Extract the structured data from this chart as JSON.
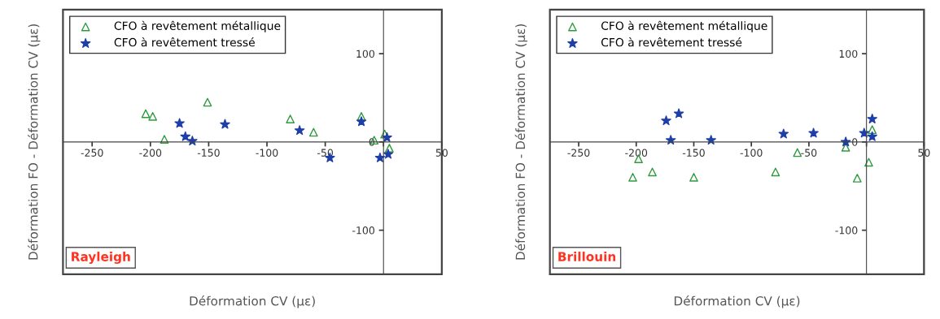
{
  "chart_data": [
    {
      "type": "scatter",
      "xlabel": "Déformation CV (µε)",
      "ylabel": "Déformation FO - Déformation CV (µε)",
      "annotations": [
        "Rayleigh"
      ],
      "xlim": [
        -275,
        50
      ],
      "ylim": [
        -150,
        150
      ],
      "xticks": [
        -250,
        -200,
        -150,
        -100,
        -50,
        {
          "value": 0,
          "label": null
        },
        50
      ],
      "yticks": [
        -100,
        0,
        100
      ],
      "legend": "top left",
      "grid": false,
      "series": [
        {
          "name": "CFO à revêtement métallique",
          "color": "#2e9a3e",
          "marker": "triangle",
          "x": [
            -204,
            -198,
            -188,
            -151,
            -80,
            -60,
            -19,
            -8,
            1,
            5
          ],
          "values": [
            32,
            29,
            3,
            45,
            26,
            11,
            29,
            2,
            9,
            -7
          ]
        },
        {
          "name": "CFO à revêtement tressé",
          "color": "#1f3fa8",
          "marker": "star",
          "x": [
            -175,
            -170,
            -164,
            -136,
            -72,
            -46,
            -19,
            -3,
            3,
            4
          ],
          "values": [
            21,
            6,
            1,
            20,
            13,
            -18,
            23,
            -18,
            5,
            -14
          ]
        }
      ]
    },
    {
      "type": "scatter",
      "xlabel": "Déformation CV (µε)",
      "ylabel": "Déformation FO - Déformation CV (µε)",
      "annotations": [
        "Brillouin"
      ],
      "xlim": [
        -275,
        50
      ],
      "ylim": [
        -150,
        150
      ],
      "xticks": [
        -250,
        -200,
        -150,
        -100,
        -50,
        {
          "value": 0,
          "label": null
        },
        50
      ],
      "yticks": [
        -100,
        0,
        100
      ],
      "legend": "top left",
      "grid": false,
      "series": [
        {
          "name": "CFO à revêtement métallique",
          "color": "#2e9a3e",
          "marker": "triangle",
          "x": [
            -203,
            -198,
            -186,
            -150,
            -79,
            -60,
            -18,
            -8,
            2,
            5
          ],
          "values": [
            -40,
            -19,
            -34,
            -40,
            -34,
            -12,
            -6,
            -41,
            -23,
            14
          ]
        },
        {
          "name": "CFO à revêtement tressé",
          "color": "#1f3fa8",
          "marker": "star",
          "x": [
            -174,
            -163,
            -170,
            -135,
            -72,
            -46,
            -18,
            -2,
            5,
            5
          ],
          "values": [
            24,
            32,
            2,
            2,
            9,
            10,
            0,
            10,
            26,
            6
          ]
        }
      ]
    }
  ]
}
